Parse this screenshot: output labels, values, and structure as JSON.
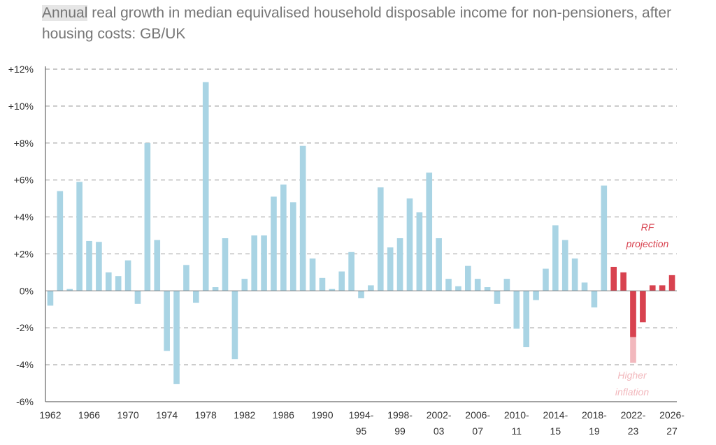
{
  "title": {
    "highlight": "Annual",
    "rest": " real growth in median equivalised household disposable income for non-pensioners, after housing costs: GB/UK"
  },
  "chart_data": {
    "type": "bar",
    "ylim": [
      -6,
      12
    ],
    "y_ticks": [
      "+12%",
      "+10%",
      "+8%",
      "+6%",
      "+4%",
      "+2%",
      "0%",
      "-2%",
      "-4%",
      "-6%"
    ],
    "y_tick_values": [
      12,
      10,
      8,
      6,
      4,
      2,
      0,
      -2,
      -4,
      -6
    ],
    "grid": "horizontal dashed",
    "colors": {
      "historic": "#a9d4e4",
      "projection": "#d8424f",
      "higher_inflation": "#f2b8bd"
    },
    "x_tick_labels": [
      {
        "line1": "1962",
        "line2": "",
        "cat": 0
      },
      {
        "line1": "1966",
        "line2": "",
        "cat": 4
      },
      {
        "line1": "1970",
        "line2": "",
        "cat": 8
      },
      {
        "line1": "1974",
        "line2": "",
        "cat": 12
      },
      {
        "line1": "1978",
        "line2": "",
        "cat": 16
      },
      {
        "line1": "1982",
        "line2": "",
        "cat": 20
      },
      {
        "line1": "1986",
        "line2": "",
        "cat": 24
      },
      {
        "line1": "1990",
        "line2": "",
        "cat": 28
      },
      {
        "line1": "1994-",
        "line2": "95",
        "cat": 32
      },
      {
        "line1": "1998-",
        "line2": "99",
        "cat": 36
      },
      {
        "line1": "2002-",
        "line2": "03",
        "cat": 40
      },
      {
        "line1": "2006-",
        "line2": "07",
        "cat": 44
      },
      {
        "line1": "2010-",
        "line2": "11",
        "cat": 48
      },
      {
        "line1": "2014-",
        "line2": "15",
        "cat": 52
      },
      {
        "line1": "2018-",
        "line2": "19",
        "cat": 56
      },
      {
        "line1": "2022-",
        "line2": "23",
        "cat": 60
      },
      {
        "line1": "2026-",
        "line2": "27",
        "cat": 64
      }
    ],
    "values": [
      -0.8,
      5.4,
      0.1,
      5.9,
      2.7,
      2.65,
      1.0,
      0.8,
      1.65,
      -0.7,
      8.0,
      2.75,
      -3.25,
      -5.05,
      1.4,
      -0.65,
      11.3,
      0.2,
      2.85,
      -3.7,
      0.65,
      3.0,
      3.0,
      5.1,
      5.75,
      4.8,
      7.85,
      1.75,
      0.7,
      0.1,
      1.05,
      2.1,
      -0.4,
      0.3,
      5.6,
      2.35,
      2.85,
      5.0,
      4.25,
      6.4,
      2.85,
      0.65,
      0.25,
      1.35,
      0.65,
      0.2,
      -0.7,
      0.65,
      -2.05,
      -3.05,
      -0.5,
      1.2,
      3.55,
      2.75,
      1.75,
      0.45,
      -0.9,
      5.7,
      1.3,
      1.0,
      -2.5,
      -1.7,
      0.3,
      0.3,
      0.85
    ],
    "projection_start_index": 58,
    "higher_inflation": [
      {
        "index": 60,
        "value": -3.9
      }
    ],
    "annotations": {
      "projection": [
        "RF",
        "projection"
      ],
      "higher_inflation": [
        "Higher",
        "inflation"
      ]
    }
  }
}
